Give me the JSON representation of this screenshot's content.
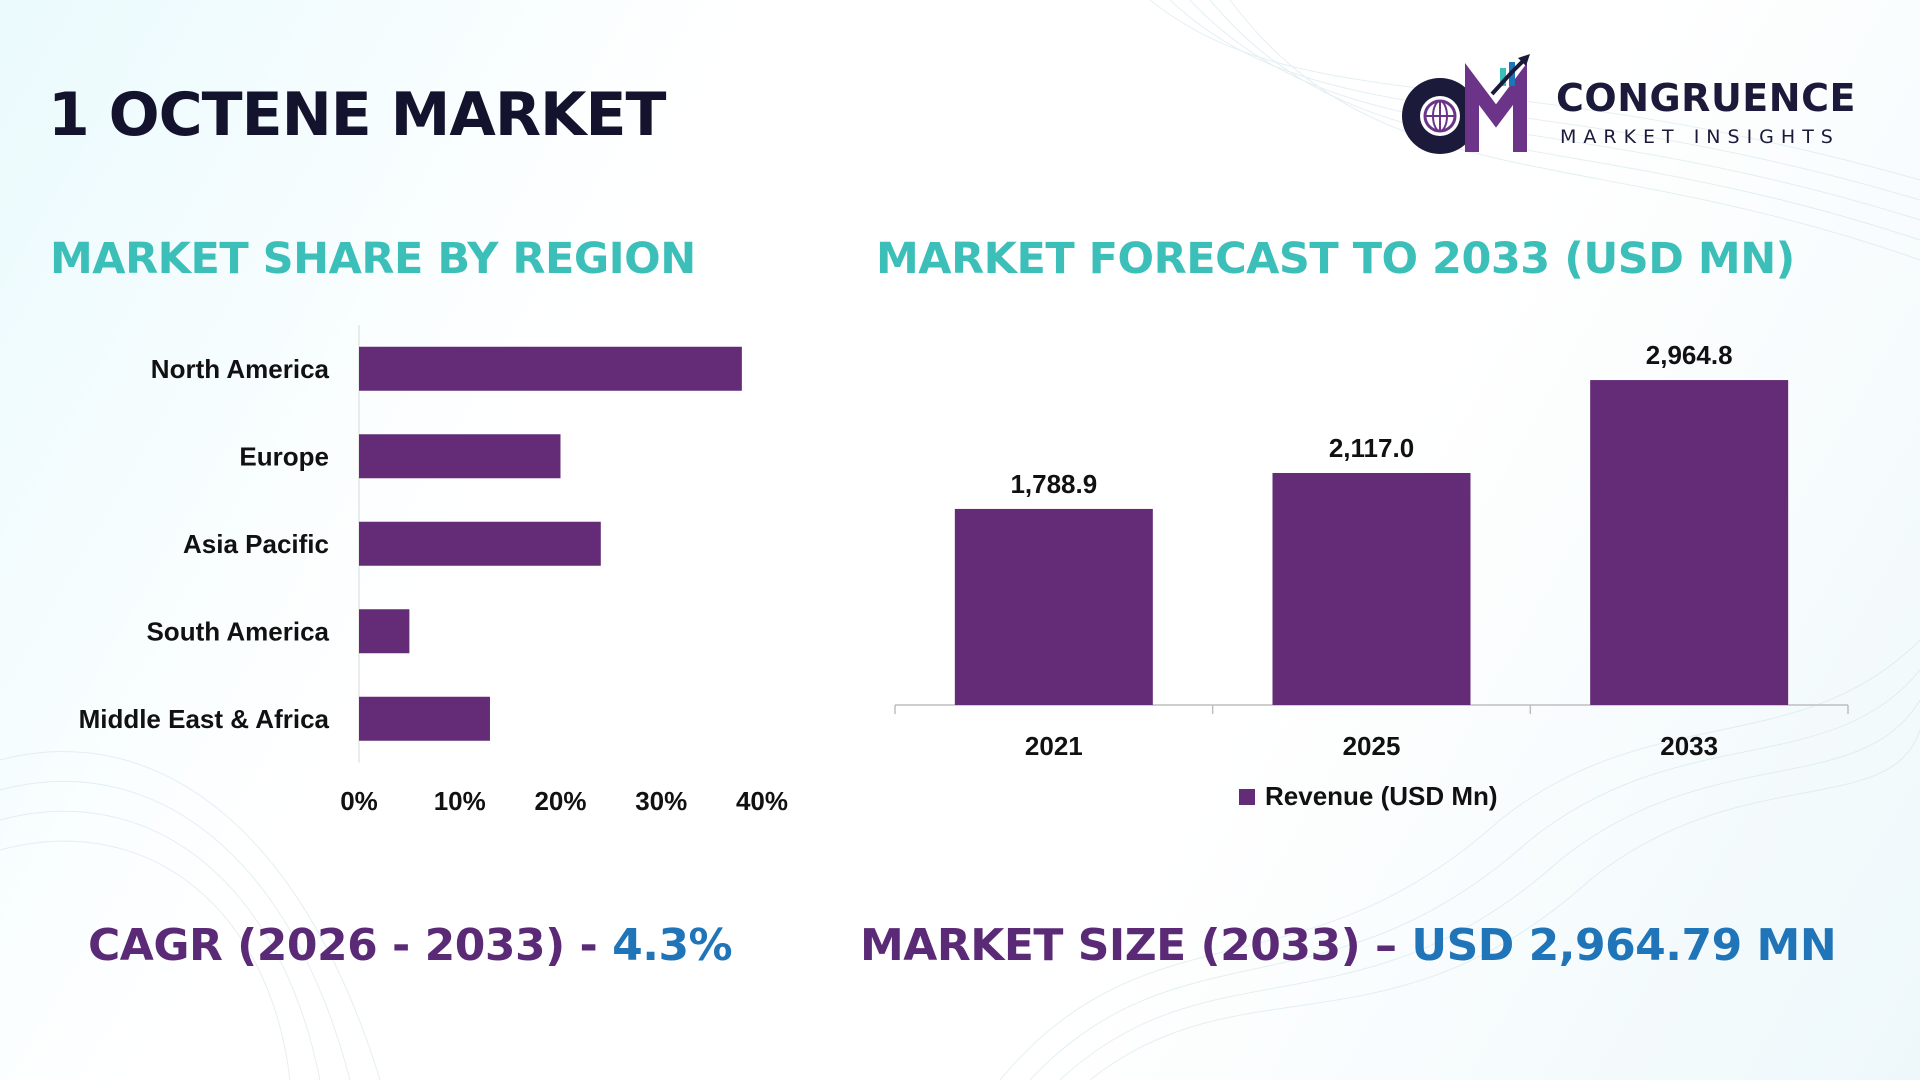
{
  "title": "1 OCTENE MARKET",
  "logo": {
    "mark": "CM",
    "name": "CONGRUENCE",
    "tagline": "MARKET INSIGHTS"
  },
  "colors": {
    "bar": "#642b77",
    "section_title": "#3cbfb8",
    "footer_label": "#5b2a76",
    "footer_value": "#2074b8"
  },
  "share_section": {
    "title": "MARKET SHARE BY REGION"
  },
  "forecast_section": {
    "title": "MARKET FORECAST TO 2033 (USD MN)"
  },
  "chart_data": [
    {
      "type": "bar",
      "orientation": "horizontal",
      "categories": [
        "North America",
        "Europe",
        "Asia Pacific",
        "South America",
        "Middle East & Africa"
      ],
      "values": [
        38,
        20,
        24,
        5,
        13
      ],
      "unit": "%",
      "xlim": [
        0,
        40
      ],
      "xticks": [
        "0%",
        "10%",
        "20%",
        "30%",
        "40%"
      ],
      "grid": false
    },
    {
      "type": "bar",
      "orientation": "vertical",
      "categories": [
        "2021",
        "2025",
        "2033"
      ],
      "values": [
        1788.9,
        2117.0,
        2964.8
      ],
      "data_labels": [
        "1,788.9",
        "2,117.0",
        "2,964.8"
      ],
      "series": [
        {
          "name": "Revenue (USD Mn)",
          "values": [
            1788.9,
            2117.0,
            2964.8
          ]
        }
      ],
      "ylim": [
        0,
        3000
      ],
      "legend": "bottom",
      "grid": false
    }
  ],
  "footer": {
    "cagr_label": "CAGR (2026 - 2033) - ",
    "cagr_value": "4.3%",
    "size_label": "MARKET SIZE (2033) – ",
    "size_value": "USD 2,964.79 MN"
  }
}
